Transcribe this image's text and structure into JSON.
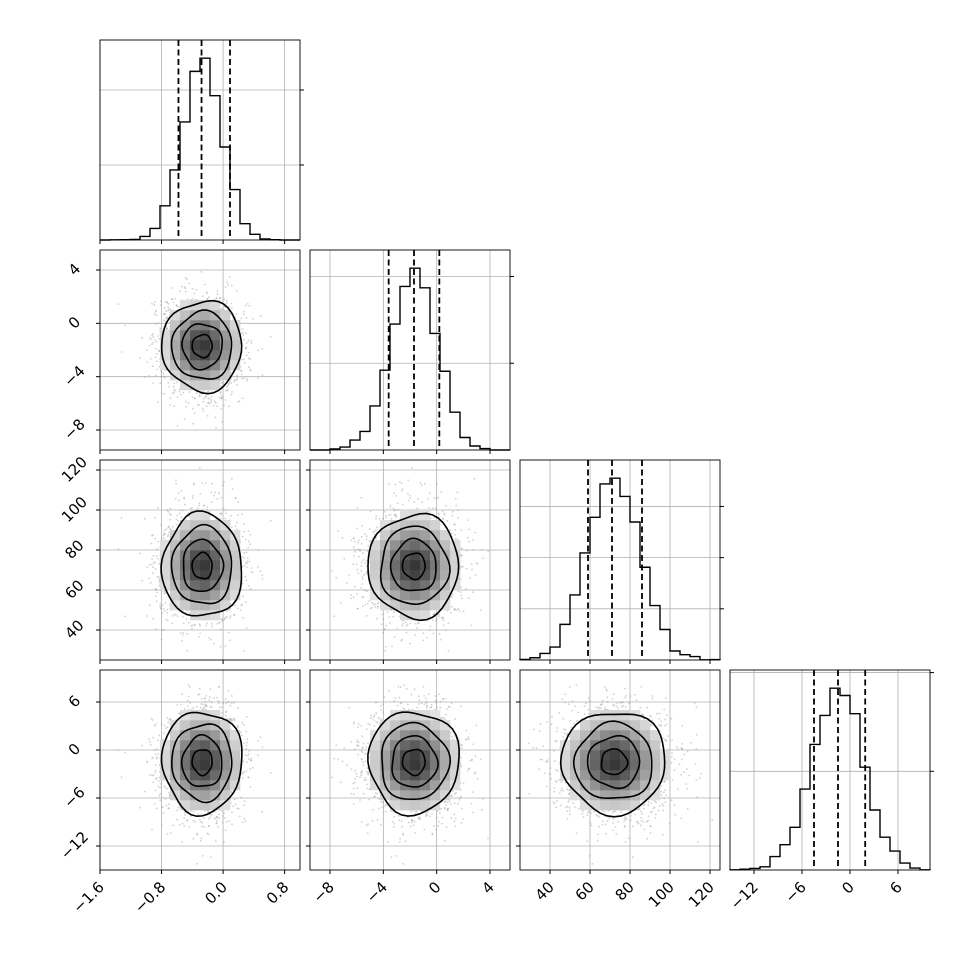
{
  "chart_data": {
    "type": "corner",
    "title": "",
    "colors": {
      "line": "#000000",
      "grid": "#b0b0b0",
      "points": "#9a9a9a",
      "background": "#ffffff"
    },
    "grid": true,
    "parameters": [
      {
        "range": [
          -1.6,
          1.0
        ],
        "ticks": [
          -1.6,
          -0.8,
          0.0,
          0.8
        ],
        "tick_labels": [
          "−1.6",
          "−0.8",
          "0.0",
          "0.8"
        ],
        "quantiles": [
          -0.58,
          -0.28,
          0.09
        ],
        "mean": -0.27,
        "sd": 0.26
      },
      {
        "range": [
          -9.5,
          5.5
        ],
        "ticks": [
          -8,
          -4,
          0,
          4
        ],
        "tick_labels": [
          "−8",
          "−4",
          "0",
          "4"
        ],
        "quantiles": [
          -3.6,
          -1.7,
          0.2
        ],
        "mean": -1.7,
        "sd": 1.7
      },
      {
        "range": [
          25,
          125
        ],
        "ticks": [
          40,
          60,
          80,
          100,
          120
        ],
        "tick_labels": [
          "40",
          "60",
          "80",
          "100",
          "120"
        ],
        "quantiles": [
          59,
          71,
          86
        ],
        "mean": 72,
        "sd": 13
      },
      {
        "range": [
          -15,
          10
        ],
        "ticks": [
          -12,
          -6,
          0,
          6
        ],
        "tick_labels": [
          "−12",
          "−6",
          "0",
          "6"
        ],
        "quantiles": [
          -4.5,
          -1.5,
          1.9
        ],
        "mean": -1.5,
        "sd": 3.2
      }
    ]
  }
}
